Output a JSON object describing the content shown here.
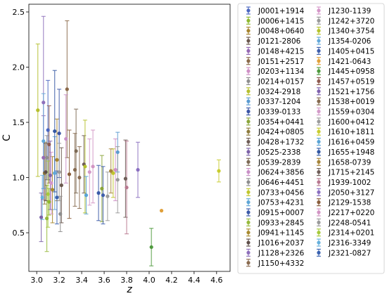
{
  "chart_data": {
    "type": "scatter",
    "xlabel": "z",
    "ylabel": "C",
    "xlim": [
      2.93,
      4.72
    ],
    "ylim": [
      0.15,
      2.57
    ],
    "xticks": [
      "3.0",
      "3.2",
      "3.4",
      "3.6",
      "3.8",
      "4.0",
      "4.2",
      "4.4",
      "4.6"
    ],
    "yticks": [
      "0.5",
      "1.0",
      "1.5",
      "2.0",
      "2.5"
    ],
    "grid": false,
    "legend_position": "right-outside",
    "legend_columns": 2,
    "series": [
      {
        "name": "J0001+1914",
        "color": "#4a66c0",
        "x": 3.1,
        "y": 1.43,
        "yerr": [
          0.45,
          0.45
        ]
      },
      {
        "name": "J0006+1415",
        "color": "#8fb82f",
        "x": 3.11,
        "y": 0.78,
        "yerr": [
          0.12,
          0.12
        ]
      },
      {
        "name": "J0048+0640",
        "color": "#a6842e",
        "x": 3.18,
        "y": 1.16,
        "yerr": [
          0.37,
          0.37
        ]
      },
      {
        "name": "J0121-2806",
        "color": "#6b584e",
        "x": 3.22,
        "y": 0.93,
        "yerr": [
          0.34,
          0.34
        ]
      },
      {
        "name": "J0148+4215",
        "color": "#9569b4",
        "x": 3.06,
        "y": 1.18,
        "yerr": [
          0.38,
          0.38
        ]
      },
      {
        "name": "J0151+2517",
        "color": "#8b6a4a",
        "x": 3.27,
        "y": 1.8,
        "yerr": [
          0.62,
          0.62
        ]
      },
      {
        "name": "J0203+1134",
        "color": "#cf90c6",
        "x": 3.7,
        "y": 1.07,
        "yerr": [
          0.28,
          0.28
        ]
      },
      {
        "name": "J0214+0157",
        "color": "#8e8e8e",
        "x": 3.09,
        "y": 1.18,
        "yerr": [
          0.2,
          0.2
        ]
      },
      {
        "name": "J0324-2918",
        "color": "#b6bf2e",
        "x": 3.01,
        "y": 1.61,
        "yerr": [
          0.6,
          0.6
        ]
      },
      {
        "name": "J0337-1204",
        "color": "#5b9bd1",
        "x": 3.72,
        "y": 1.23,
        "yerr": [
          0.18,
          0.18
        ]
      },
      {
        "name": "J0339-0133",
        "color": "#3a55a6",
        "x": 3.2,
        "y": 1.4,
        "yerr": [
          0.4,
          0.4
        ]
      },
      {
        "name": "J0354+0441",
        "color": "#8ba53a",
        "x": 3.58,
        "y": 0.9,
        "yerr": [
          0.3,
          0.3
        ]
      },
      {
        "name": "J0424+0805",
        "color": "#8e7a3c",
        "x": 3.07,
        "y": 1.04,
        "yerr": [
          0.28,
          0.28
        ]
      },
      {
        "name": "J0428+1732",
        "color": "#6e5c56",
        "x": 3.42,
        "y": 1.12,
        "yerr": [
          0.26,
          0.26
        ]
      },
      {
        "name": "J0525-2338",
        "color": "#7d63a8",
        "x": 3.04,
        "y": 0.64,
        "yerr": [
          0.22,
          0.22
        ]
      },
      {
        "name": "J0539-2839",
        "color": "#7d6a55",
        "x": 3.35,
        "y": 1.24,
        "yerr": [
          0.38,
          0.38
        ]
      },
      {
        "name": "J0624+3856",
        "color": "#c990c7",
        "x": 3.26,
        "y": 1.35,
        "yerr": [
          0.4,
          0.4
        ]
      },
      {
        "name": "J0646+4451",
        "color": "#8d8d8d",
        "x": 3.21,
        "y": 0.67,
        "yerr": [
          0.16,
          0.16
        ]
      },
      {
        "name": "J0733+0456",
        "color": "#c0c62c",
        "x": 3.68,
        "y": 1.04,
        "yerr": [
          0.22,
          0.22
        ]
      },
      {
        "name": "J0753+4231",
        "color": "#5fa6d6",
        "x": 3.16,
        "y": 1.04,
        "yerr": [
          0.33,
          0.33
        ]
      },
      {
        "name": "J0915+0007",
        "color": "#3b5aa8",
        "x": 3.55,
        "y": 0.86,
        "yerr": [
          0.25,
          0.25
        ]
      },
      {
        "name": "J0933+2845",
        "color": "#97b93b",
        "x": 3.09,
        "y": 0.63,
        "yerr": [
          0.3,
          0.3
        ]
      },
      {
        "name": "J0941+1145",
        "color": "#a88a2f",
        "x": 3.14,
        "y": 0.89,
        "yerr": [
          0.3,
          0.3
        ]
      },
      {
        "name": "J1016+2037",
        "color": "#5e4e49",
        "x": 3.08,
        "y": 1.05,
        "yerr": [
          0.26,
          0.26
        ]
      },
      {
        "name": "J1128+2326",
        "color": "#8e70bb",
        "x": 3.06,
        "y": 1.68,
        "yerr": [
          0.78,
          0.78
        ]
      },
      {
        "name": "J1150+4332",
        "color": "#8a6b50",
        "x": 3.38,
        "y": 1.0,
        "yerr": [
          0.28,
          0.28
        ]
      },
      {
        "name": "J1230-1139",
        "color": "#d497c8",
        "x": 3.13,
        "y": 0.95,
        "yerr": [
          0.28,
          0.28
        ]
      },
      {
        "name": "J1242+3720",
        "color": "#999999",
        "x": 3.72,
        "y": 0.98,
        "yerr": [
          0.3,
          0.3
        ]
      },
      {
        "name": "J1340+3754",
        "color": "#b5c22c",
        "x": 3.43,
        "y": 1.1,
        "yerr": [
          0.42,
          0.42
        ]
      },
      {
        "name": "J1354-0206",
        "color": "#64a8d9",
        "x": 3.06,
        "y": 1.33,
        "yerr": [
          0.43,
          0.43
        ]
      },
      {
        "name": "J1405+0415",
        "color": "#3f5fac",
        "x": 3.59,
        "y": 0.84,
        "yerr": [
          0.26,
          0.26
        ]
      },
      {
        "name": "J1421-0643",
        "color": "#e0a03a",
        "x": 4.11,
        "y": 0.7,
        "yerr": [
          0.0,
          0.0
        ]
      },
      {
        "name": "J1445+0958",
        "color": "#4f9a3e",
        "x": 4.02,
        "y": 0.37,
        "yerr": [
          0.17,
          0.17
        ]
      },
      {
        "name": "J1457+0519",
        "color": "#8e5a4f",
        "x": 3.11,
        "y": 1.3,
        "yerr": [
          0.35,
          0.35
        ]
      },
      {
        "name": "J1521+1756",
        "color": "#7f62ae",
        "x": 3.12,
        "y": 1.02,
        "yerr": [
          0.31,
          0.31
        ]
      },
      {
        "name": "J1538+0019",
        "color": "#866a4f",
        "x": 3.34,
        "y": 1.07,
        "yerr": [
          0.33,
          0.33
        ]
      },
      {
        "name": "J1559+0304",
        "color": "#d39bc9",
        "x": 3.47,
        "y": 1.05,
        "yerr": [
          0.3,
          0.3
        ]
      },
      {
        "name": "J1600+0412",
        "color": "#9c9c9c",
        "x": 3.63,
        "y": 0.83,
        "yerr": [
          0.22,
          0.22
        ]
      },
      {
        "name": "J1610+1811",
        "color": "#c8cc2e",
        "x": 4.62,
        "y": 1.06,
        "yerr": [
          0.1,
          0.1
        ]
      },
      {
        "name": "J1616+0459",
        "color": "#5aa3d4",
        "x": 3.44,
        "y": 0.84,
        "yerr": [
          0.17,
          0.17
        ]
      },
      {
        "name": "J1655+1948",
        "color": "#3358a3",
        "x": 3.16,
        "y": 1.42,
        "yerr": [
          0.55,
          0.55
        ]
      },
      {
        "name": "J1658-0739",
        "color": "#a6843a",
        "x": 3.66,
        "y": 1.06,
        "yerr": [
          0.2,
          0.2
        ]
      },
      {
        "name": "J1715+2145",
        "color": "#6f5e58",
        "x": 3.79,
        "y": 0.99,
        "yerr": [
          0.35,
          0.35
        ]
      },
      {
        "name": "J1939-1002",
        "color": "#b87890",
        "x": 3.8,
        "y": 0.91,
        "yerr": [
          0.42,
          0.42
        ]
      },
      {
        "name": "J2050+3127",
        "color": "#8a6fc0",
        "x": 3.9,
        "y": 1.07,
        "yerr": [
          0.25,
          0.25
        ]
      },
      {
        "name": "J2129-1538",
        "color": "#8a5e3c",
        "x": 3.29,
        "y": 1.03,
        "yerr": [
          0.4,
          0.4
        ]
      },
      {
        "name": "J2217+0220",
        "color": "#d295c4",
        "x": 3.5,
        "y": 1.1,
        "yerr": [
          0.33,
          0.33
        ]
      },
      {
        "name": "J2248-0541",
        "color": "#9a9a9a",
        "x": 3.2,
        "y": 1.05,
        "yerr": [
          0.26,
          0.26
        ]
      },
      {
        "name": "J2314+0201",
        "color": "#a6c93a",
        "x": 3.1,
        "y": 0.85,
        "yerr": [
          0.3,
          0.3
        ]
      },
      {
        "name": "J2316-3349",
        "color": "#66b0dc",
        "x": 3.05,
        "y": 0.82,
        "yerr": [
          0.2,
          0.2
        ]
      },
      {
        "name": "J2321-0827",
        "color": "#3a62b0",
        "x": 3.18,
        "y": 0.82,
        "yerr": [
          0.24,
          0.24
        ]
      }
    ]
  }
}
